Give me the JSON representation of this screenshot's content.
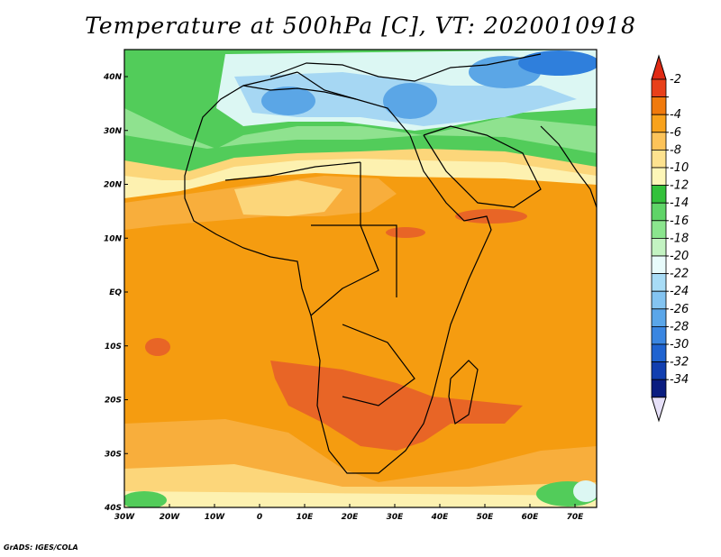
{
  "title": "Temperature at 500hPa [C], VT: 2020010918",
  "credit": "GrADS: IGES/COLA",
  "lon_ticks": [
    "30W",
    "20W",
    "10W",
    "0",
    "10E",
    "20E",
    "30E",
    "40E",
    "50E",
    "60E",
    "70E"
  ],
  "lat_ticks": [
    "40N",
    "30N",
    "20N",
    "10N",
    "EQ",
    "10S",
    "20S",
    "30S",
    "40S"
  ],
  "colorbar": {
    "labels": [
      "-2",
      "-4",
      "-6",
      "-8",
      "-10",
      "-12",
      "-14",
      "-16",
      "-18",
      "-20",
      "-22",
      "-24",
      "-26",
      "-28",
      "-30",
      "-32",
      "-34"
    ],
    "colors": [
      "#e8401a",
      "#f07a0d",
      "#f8a21c",
      "#fcc35a",
      "#fde28f",
      "#fdf6b8",
      "#33c13b",
      "#5fd468",
      "#8be58e",
      "#c3f3c2",
      "#e8fbfb",
      "#a8dcf6",
      "#84c4f1",
      "#5aa6e9",
      "#3a86e1",
      "#1f63d0",
      "#123fb0",
      "#0a1d80"
    ],
    "top_arrow": "#e02a14",
    "bottom_arrow": "#e6e0f8"
  },
  "map_colors": {
    "base": "#f59c10",
    "warm": "#e86526",
    "light_orange": "#f8ae3c",
    "yellow": "#fcd67a",
    "pale_yellow": "#fdf1b0",
    "green": "#52cc5a",
    "light_green": "#8fe28f",
    "cyan": "#dcf7f3",
    "light_blue": "#a6d7f3",
    "blue": "#5ba6e6",
    "deep_blue": "#2f7fdc"
  }
}
